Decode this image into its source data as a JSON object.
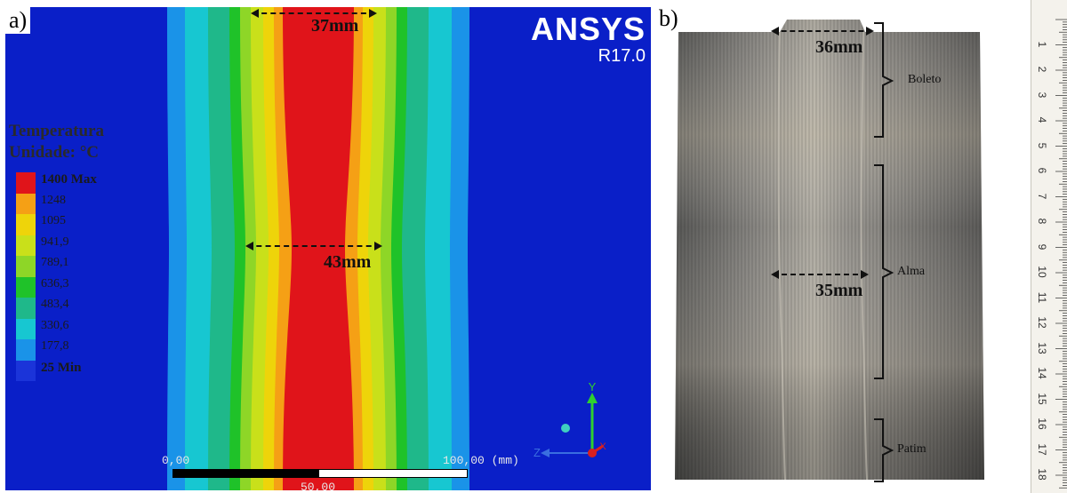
{
  "panel_a": {
    "letter": "a)",
    "logo": {
      "name": "ANSYS",
      "version": "R17.0"
    },
    "dimension_top": "37mm",
    "dimension_middle": "43mm",
    "legend": {
      "title": "Temperatura",
      "unit": "Unidade: °C",
      "entries": [
        {
          "label": "1400 Max",
          "color": "#e0141a",
          "bold": true
        },
        {
          "label": "1248",
          "color": "#f5a015",
          "bold": false
        },
        {
          "label": "1095",
          "color": "#eed40a",
          "bold": false
        },
        {
          "label": "941,9",
          "color": "#c9e01a",
          "bold": false
        },
        {
          "label": "789,1",
          "color": "#8ed627",
          "bold": false
        },
        {
          "label": "636,3",
          "color": "#1fc229",
          "bold": false
        },
        {
          "label": "483,4",
          "color": "#1fb88a",
          "bold": false
        },
        {
          "label": "330,6",
          "color": "#17c7d1",
          "bold": false
        },
        {
          "label": "177,8",
          "color": "#1a93e8",
          "bold": false
        },
        {
          "label": "25 Min",
          "color": "#1b34d9",
          "bold": true
        }
      ]
    },
    "scale": {
      "left": "0,00",
      "middle": "50,00",
      "right": "100,00 (mm)"
    },
    "axes": {
      "y": "Y",
      "z": "Z",
      "x": "X"
    }
  },
  "panel_b": {
    "letter": "b)",
    "dimension_top": "36mm",
    "dimension_middle": "35mm",
    "parts": [
      "Boleto",
      "Alma",
      "Patim"
    ],
    "ruler_numbers": [
      "1",
      "2",
      "3",
      "4",
      "5",
      "6",
      "7",
      "8",
      "9",
      "10",
      "11",
      "12",
      "13",
      "14",
      "15",
      "16",
      "17",
      "18"
    ]
  }
}
